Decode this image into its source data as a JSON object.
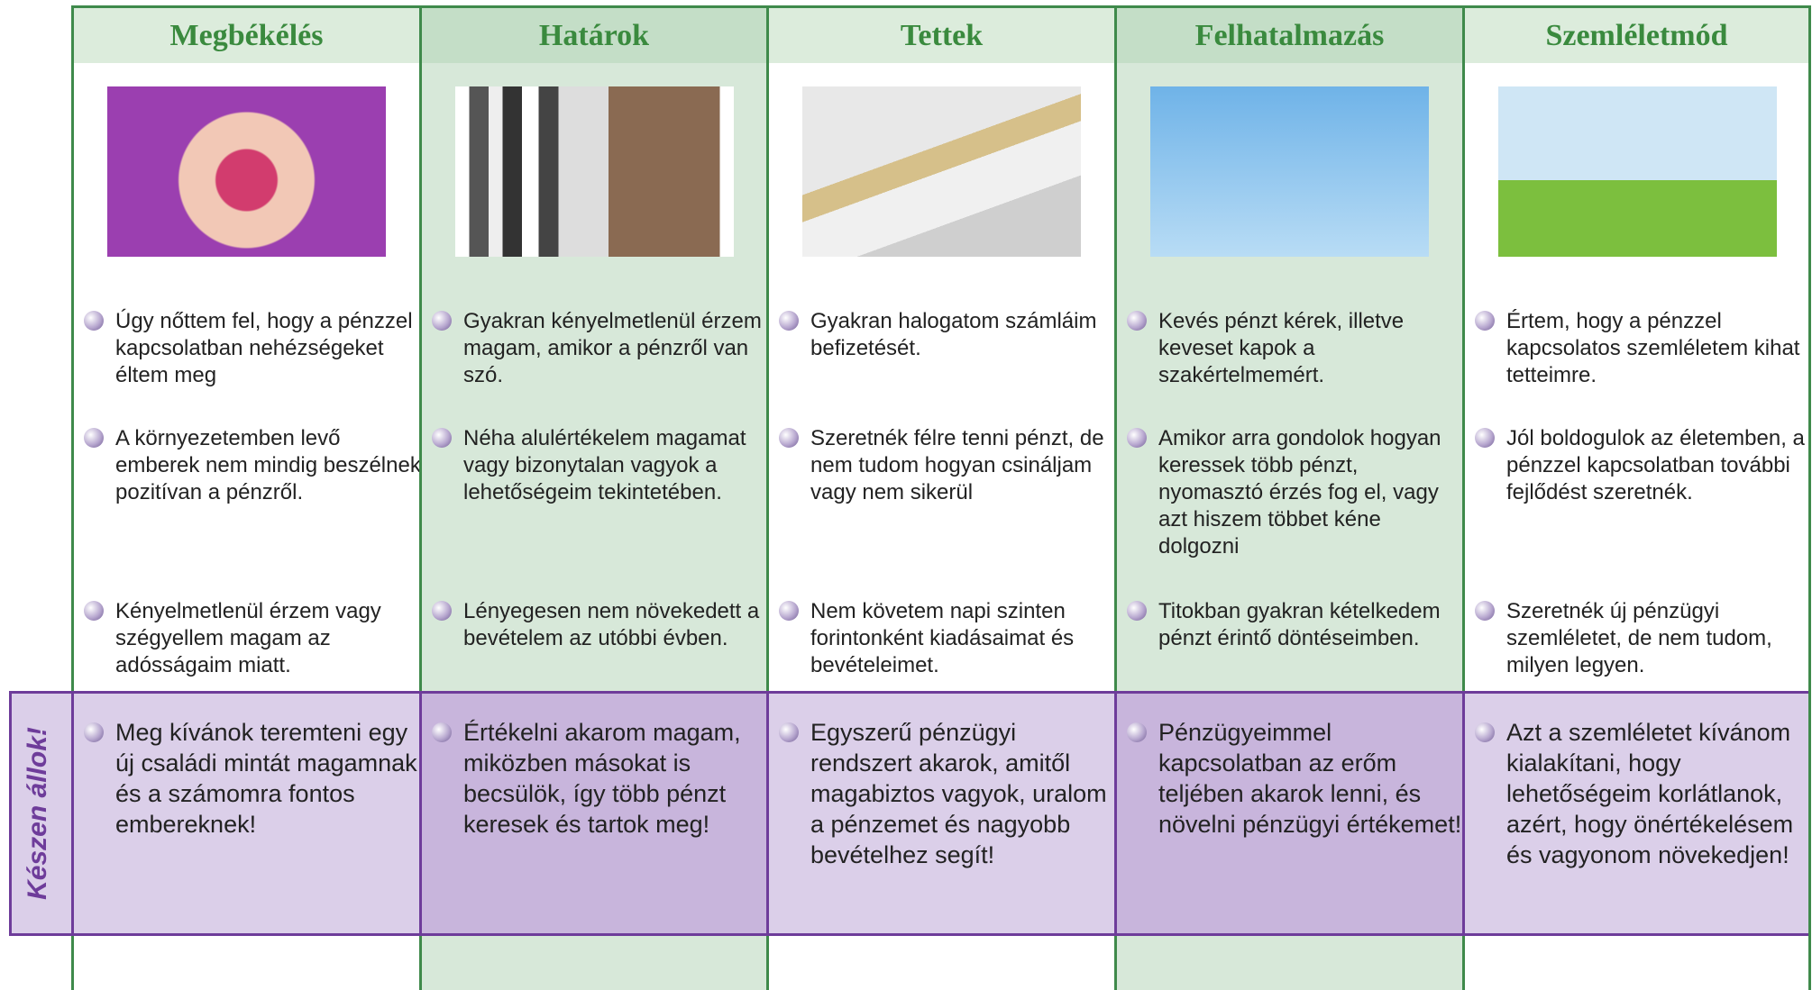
{
  "side_label": "Készen állok!",
  "columns": [
    {
      "title": "Megbékélés",
      "bullets": [
        "Úgy nőttem fel, hogy a pénzzel kapcsolatban nehézségeket éltem meg",
        "A környezetemben levő emberek nem mindig beszélnek pozitívan a pénzről.",
        "Kényelmetlenül érzem vagy szégyellem magam az adósságaim miatt."
      ],
      "ready": "Meg kívánok teremteni egy új családi mintát magamnak és a számomra fontos embereknek!"
    },
    {
      "title": "Határok",
      "bullets": [
        "Gyakran kényelmetlenül érzem magam, amikor a pénzről van szó.",
        "Néha alulértékelem magamat vagy bizonytalan vagyok a lehetőségeim tekintetében.",
        "Lényegesen nem növekedett a bevételem az utóbbi évben."
      ],
      "ready": "Értékelni akarom magam,  miközben másokat is becsülök, így több pénzt keresek és tartok meg!"
    },
    {
      "title": "Tettek",
      "bullets": [
        "Gyakran halogatom számláim befizetését.",
        "Szeretnék félre tenni pénzt, de nem tudom hogyan csináljam vagy nem sikerül",
        "Nem követem napi szinten forintonként kiadásaimat és bevételeimet."
      ],
      "ready": "Egyszerű pénzügyi rendszert akarok, amitől magabiztos vagyok, uralom a pénzemet és nagyobb bevételhez segít!"
    },
    {
      "title": "Felhatalmazás",
      "bullets": [
        "Kevés pénzt kérek, illetve keveset kapok a szakértelmemért.",
        "Amikor arra gondolok hogyan keressek több pénzt, nyomasztó érzés fog el, vagy azt hiszem többet kéne dolgozni",
        "Titokban gyakran kételkedem pénzt érintő döntéseimben."
      ],
      "ready": "Pénzügyeimmel kapcsolatban az erőm teljében akarok lenni, és növelni pénzügyi értékemet!"
    },
    {
      "title": "Szemléletmód",
      "bullets": [
        "Értem, hogy a pénzzel kapcsolatos szemléletem kihat tetteimre.",
        "Jól boldogulok az életemben, a pénzzel kapcsolatban további fejlődést szeretnék.",
        "Szeretnék új pénzügyi szemléletet, de nem tudom, milyen legyen."
      ],
      "ready": "Azt a szemléletet kívánom kialakítani, hogy lehetőségeim korlátlanok, azért, hogy önértékelésem és vagyonom növekedjen!"
    }
  ]
}
